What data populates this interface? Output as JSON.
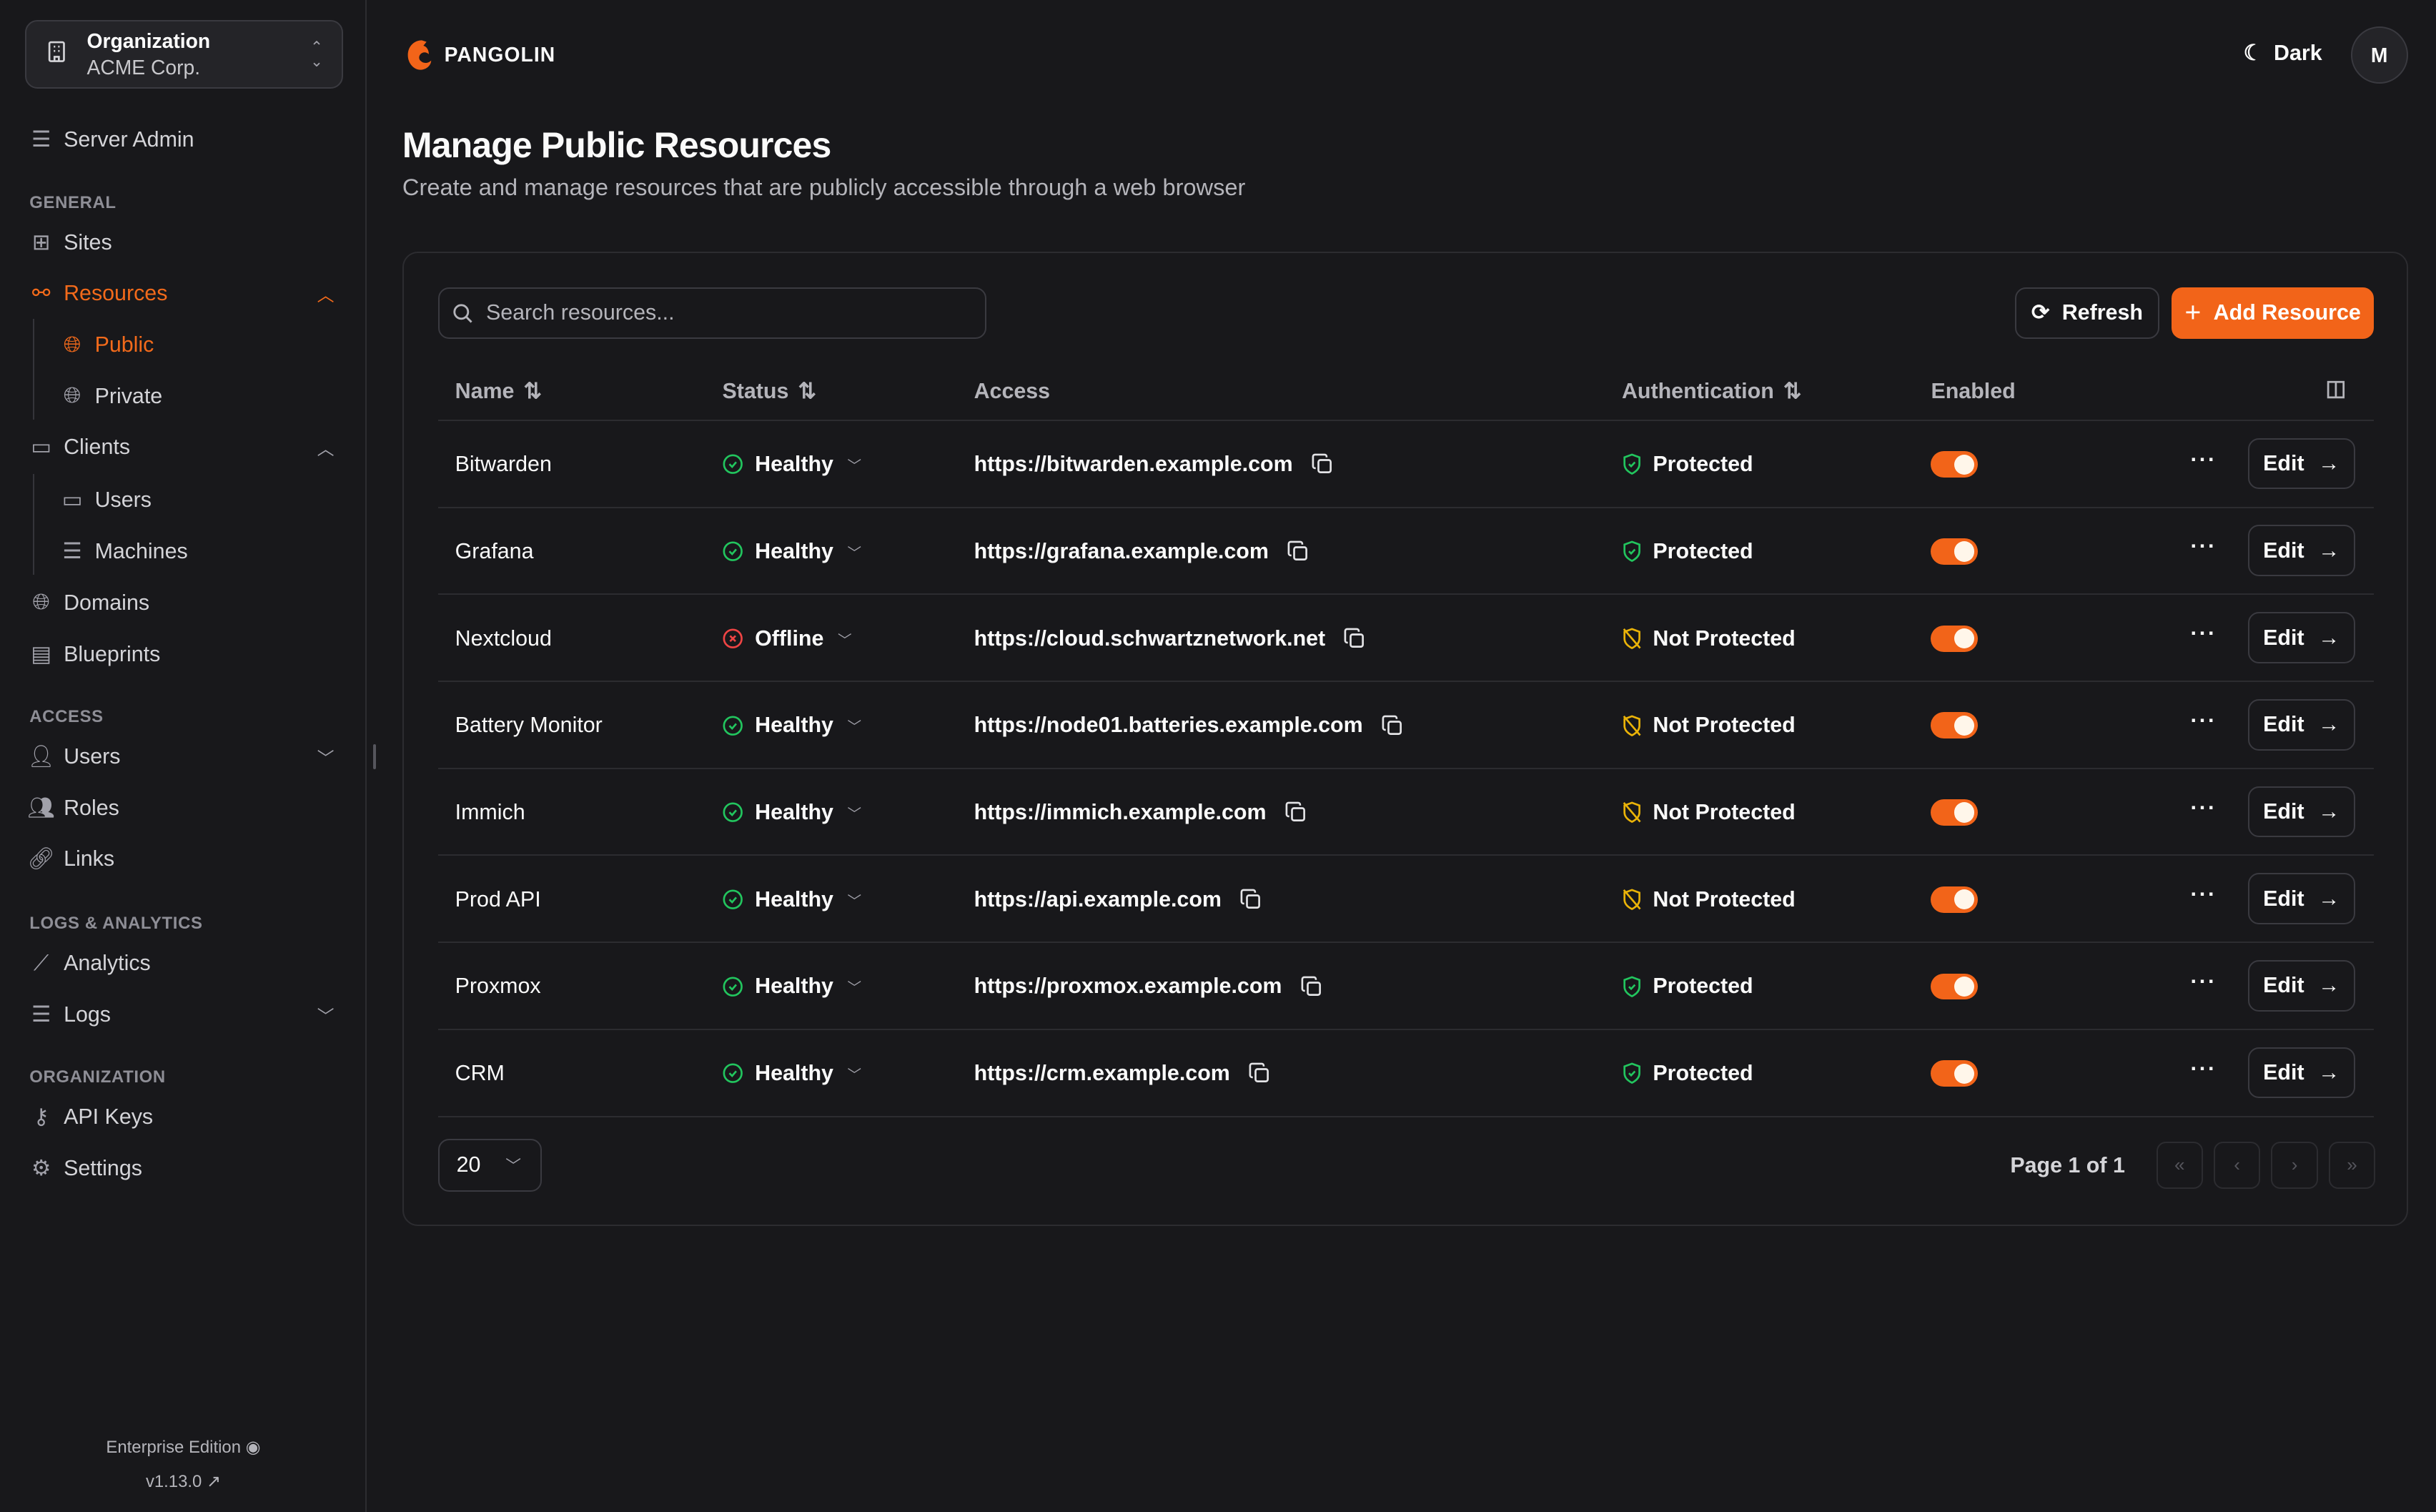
{
  "org": {
    "label": "Organization",
    "name": "ACME Corp."
  },
  "sidebar": {
    "server_admin": "Server Admin",
    "sections": {
      "general": "GENERAL",
      "access": "ACCESS",
      "logs": "LOGS & ANALYTICS",
      "organization": "ORGANIZATION"
    },
    "items": {
      "sites": "Sites",
      "resources": "Resources",
      "public": "Public",
      "private": "Private",
      "clients": "Clients",
      "users_client": "Users",
      "machines": "Machines",
      "domains": "Domains",
      "blueprints": "Blueprints",
      "users": "Users",
      "roles": "Roles",
      "links": "Links",
      "analytics": "Analytics",
      "logs": "Logs",
      "api_keys": "API Keys",
      "settings": "Settings"
    },
    "edition": "Enterprise Edition",
    "version": "v1.13.0"
  },
  "header": {
    "brand": "PANGOLIN",
    "theme": "Dark",
    "avatar": "M"
  },
  "page": {
    "title": "Manage Public Resources",
    "description": "Create and manage resources that are publicly accessible through a web browser"
  },
  "toolbar": {
    "search_placeholder": "Search resources...",
    "refresh": "Refresh",
    "add": "Add Resource"
  },
  "table": {
    "columns": {
      "name": "Name",
      "status": "Status",
      "access": "Access",
      "auth": "Authentication",
      "enabled": "Enabled"
    },
    "edit_label": "Edit",
    "rows": [
      {
        "name": "Bitwarden",
        "status": "Healthy",
        "access": "https://bitwarden.example.com",
        "auth": "Protected",
        "enabled": true
      },
      {
        "name": "Grafana",
        "status": "Healthy",
        "access": "https://grafana.example.com",
        "auth": "Protected",
        "enabled": true
      },
      {
        "name": "Nextcloud",
        "status": "Offline",
        "access": "https://cloud.schwartznetwork.net",
        "auth": "Not Protected",
        "enabled": true
      },
      {
        "name": "Battery Monitor",
        "status": "Healthy",
        "access": "https://node01.batteries.example.com",
        "auth": "Not Protected",
        "enabled": true
      },
      {
        "name": "Immich",
        "status": "Healthy",
        "access": "https://immich.example.com",
        "auth": "Not Protected",
        "enabled": true
      },
      {
        "name": "Prod API",
        "status": "Healthy",
        "access": "https://api.example.com",
        "auth": "Not Protected",
        "enabled": true
      },
      {
        "name": "Proxmox",
        "status": "Healthy",
        "access": "https://proxmox.example.com",
        "auth": "Protected",
        "enabled": true
      },
      {
        "name": "CRM",
        "status": "Healthy",
        "access": "https://crm.example.com",
        "auth": "Protected",
        "enabled": true
      }
    ]
  },
  "pagination": {
    "page_size": "20",
    "page_info": "Page 1 of 1"
  },
  "colors": {
    "accent": "#f26419",
    "healthy": "#22c55e",
    "offline": "#ef4444",
    "warning": "#eab308",
    "background": "#18181b"
  }
}
